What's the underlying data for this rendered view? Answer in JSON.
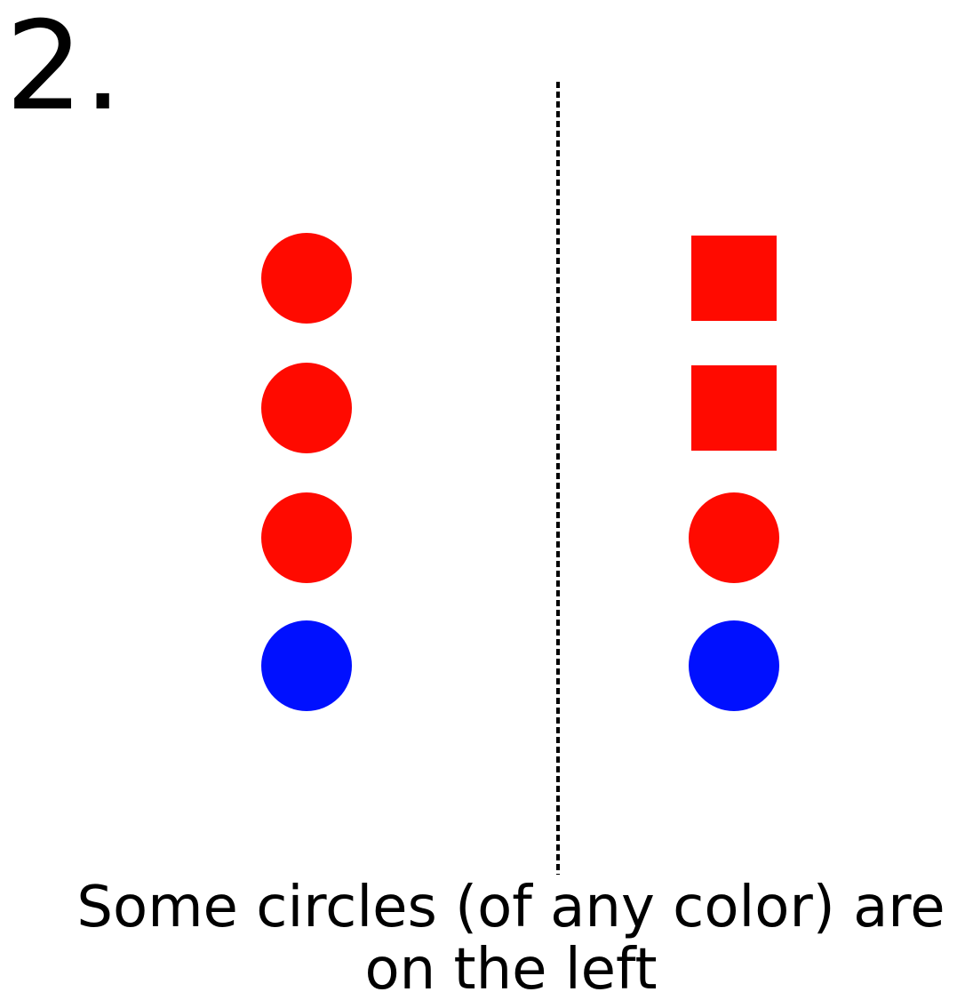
{
  "item_number": "2.",
  "caption": {
    "line1": "Some circles (of any color) are",
    "line2": "on the left"
  },
  "colors": {
    "red": "#ff0a00",
    "blue": "#0010ff",
    "divider": "#000000"
  },
  "left_group": [
    {
      "shape": "circle",
      "color": "red"
    },
    {
      "shape": "circle",
      "color": "red"
    },
    {
      "shape": "circle",
      "color": "red"
    },
    {
      "shape": "circle",
      "color": "blue"
    }
  ],
  "right_group": [
    {
      "shape": "square",
      "color": "red"
    },
    {
      "shape": "square",
      "color": "red"
    },
    {
      "shape": "circle",
      "color": "red"
    },
    {
      "shape": "circle",
      "color": "blue"
    }
  ]
}
